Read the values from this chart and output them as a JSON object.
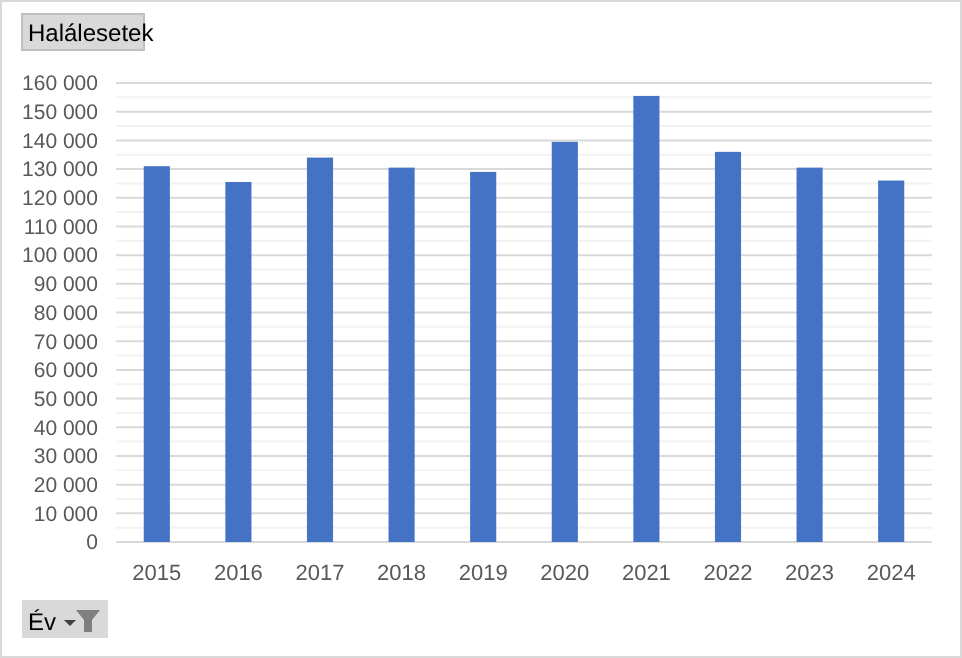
{
  "chart_data": {
    "type": "bar",
    "title": "Halálesetek",
    "xlabel": "Év",
    "categories": [
      "2015",
      "2016",
      "2017",
      "2018",
      "2019",
      "2020",
      "2021",
      "2022",
      "2023",
      "2024"
    ],
    "values": [
      131000,
      125500,
      134000,
      130500,
      129000,
      139500,
      155500,
      136000,
      130500,
      126000
    ],
    "color": "#4472c4",
    "ylim": [
      0,
      160000
    ],
    "yticks": [
      0,
      {
        "value": 10000,
        "label": "10 000"
      },
      {
        "value": 20000,
        "label": "20 000"
      },
      {
        "value": 30000,
        "label": "30 000"
      },
      {
        "value": 40000,
        "label": "40 000"
      },
      {
        "value": 50000,
        "label": "50 000"
      },
      {
        "value": 60000,
        "label": "60 000"
      },
      {
        "value": 70000,
        "label": "70 000"
      },
      {
        "value": 80000,
        "label": "80 000"
      },
      {
        "value": 90000,
        "label": "90 000"
      },
      {
        "value": 100000,
        "label": "100 000"
      },
      {
        "value": 110000,
        "label": "110 000"
      },
      {
        "value": 120000,
        "label": "120 000"
      },
      {
        "value": 130000,
        "label": "130 000"
      },
      {
        "value": 140000,
        "label": "140 000"
      },
      {
        "value": 150000,
        "label": "150 000"
      },
      {
        "value": 160000,
        "label": "160 000"
      }
    ],
    "grid": true
  }
}
